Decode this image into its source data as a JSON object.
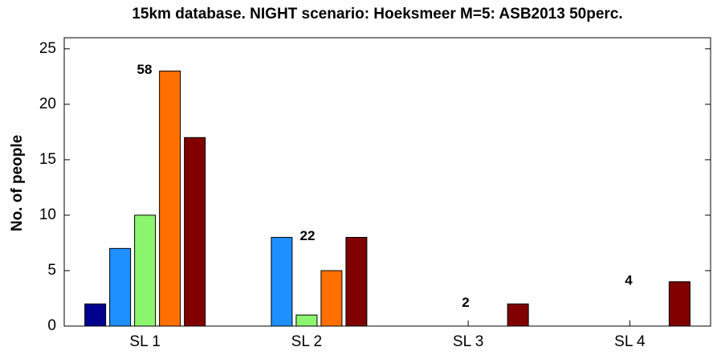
{
  "chart_data": {
    "type": "bar",
    "title": "15km database. NIGHT scenario: Hoeksmeer M=5: ASB2013 50perc.",
    "y_label": "No. of people",
    "categories": [
      "SL 1",
      "SL 2",
      "SL 3",
      "SL 4"
    ],
    "series": [
      {
        "color": "#00008f",
        "values": [
          2,
          0,
          0,
          0
        ]
      },
      {
        "color": "#1e90ff",
        "values": [
          7,
          8,
          0,
          0
        ]
      },
      {
        "color": "#8cf56e",
        "values": [
          10,
          1,
          0,
          0
        ]
      },
      {
        "color": "#ff7000",
        "values": [
          23,
          5,
          0,
          0
        ]
      },
      {
        "color": "#800000",
        "values": [
          17,
          8,
          2,
          4
        ]
      }
    ],
    "annotations": [
      "58",
      "22",
      "2",
      "4"
    ],
    "ylim": [
      0,
      26
    ],
    "yticks": [
      0,
      5,
      10,
      15,
      20,
      25
    ],
    "grid": false
  }
}
